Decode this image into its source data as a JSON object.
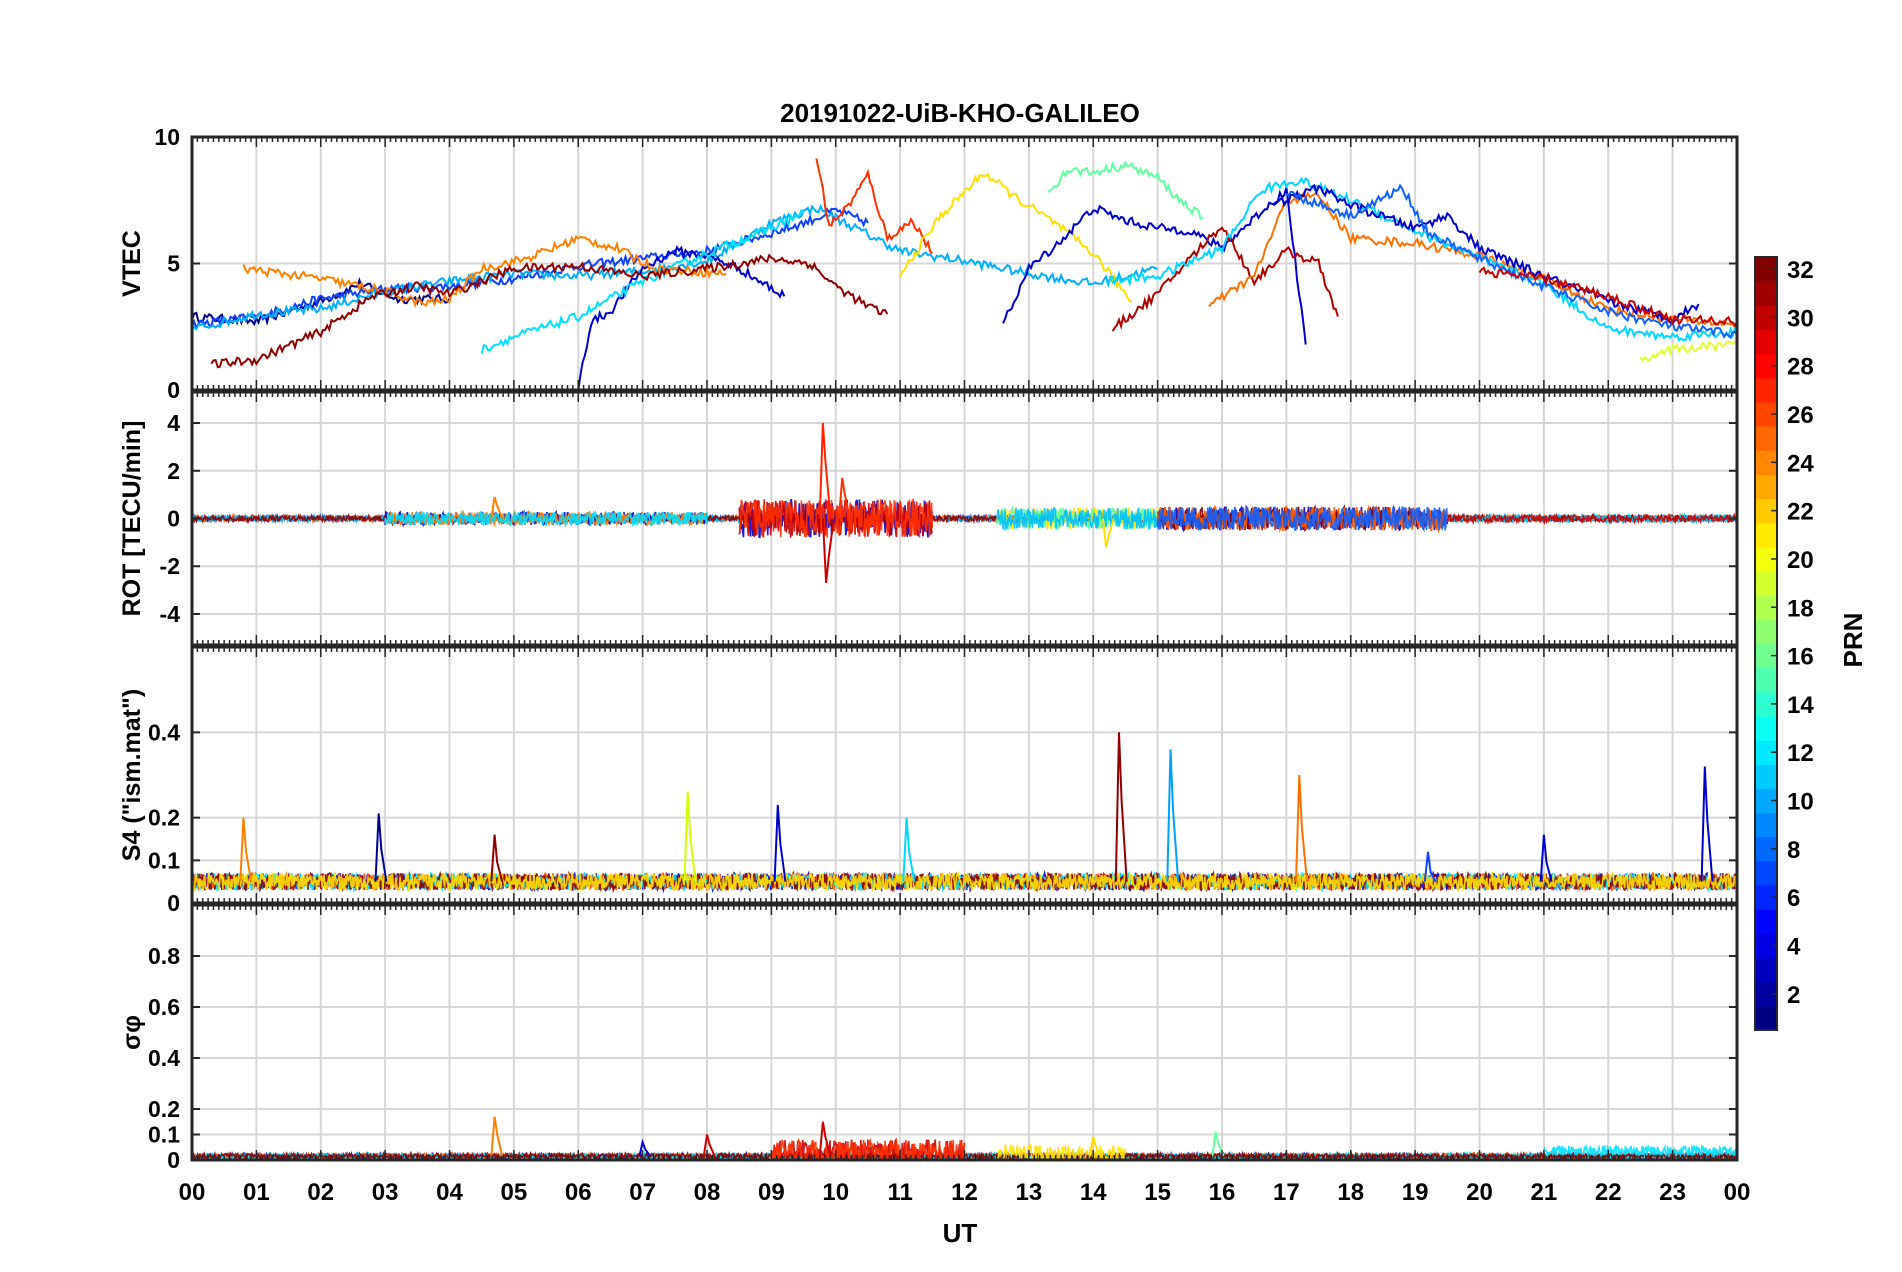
{
  "title": "20191022-UiB-KHO-GALILEO",
  "xlabel": "UT",
  "x_ticks": [
    "00",
    "01",
    "02",
    "03",
    "04",
    "05",
    "06",
    "07",
    "08",
    "09",
    "10",
    "11",
    "12",
    "13",
    "14",
    "15",
    "16",
    "17",
    "18",
    "19",
    "20",
    "21",
    "22",
    "23",
    "00"
  ],
  "colorbar": {
    "label": "PRN",
    "range": [
      1,
      32
    ],
    "ticks": [
      2,
      4,
      6,
      8,
      10,
      12,
      14,
      16,
      18,
      20,
      22,
      24,
      26,
      28,
      30,
      32
    ],
    "colormap": "jet"
  },
  "chart_data": [
    {
      "type": "line",
      "ylabel": "VTEC",
      "ylim": [
        0,
        10
      ],
      "yticks": [
        0,
        5,
        10
      ],
      "grid": true,
      "series": [
        {
          "color": "#00008f",
          "points": [
            [
              0,
              2.9
            ],
            [
              1,
              2.7
            ],
            [
              2,
              3.5
            ],
            [
              2.6,
              4.2
            ],
            [
              3.2,
              3.6
            ],
            [
              4,
              3.6
            ]
          ]
        },
        {
          "color": "#1040ff",
          "points": [
            [
              0,
              2.6
            ],
            [
              1,
              2.9
            ],
            [
              2,
              3.6
            ],
            [
              3,
              4.0
            ],
            [
              4,
              4.1
            ],
            [
              5,
              4.4
            ],
            [
              6,
              4.9
            ],
            [
              7,
              5.2
            ],
            [
              8,
              5.5
            ],
            [
              9,
              6.2
            ],
            [
              9.5,
              6.6
            ],
            [
              10,
              7.1
            ],
            [
              10.5,
              6.6
            ]
          ]
        },
        {
          "color": "#00b0ff",
          "points": [
            [
              0,
              2.4
            ],
            [
              1,
              3.0
            ],
            [
              2,
              3.2
            ],
            [
              3,
              3.9
            ],
            [
              4,
              4.3
            ],
            [
              5,
              4.6
            ],
            [
              6,
              4.5
            ],
            [
              7,
              4.7
            ],
            [
              8,
              5.1
            ],
            [
              9,
              6.6
            ],
            [
              9.7,
              7.2
            ],
            [
              10.3,
              6.4
            ],
            [
              11,
              5.5
            ],
            [
              12,
              5.1
            ],
            [
              13,
              4.6
            ],
            [
              14,
              4.2
            ],
            [
              15,
              4.8
            ]
          ]
        },
        {
          "color": "#0000cd",
          "points": [
            [
              6,
              0.1
            ],
            [
              6.2,
              2.7
            ],
            [
              6.5,
              3.1
            ],
            [
              7,
              4.8
            ],
            [
              7.5,
              5.5
            ],
            [
              8,
              5.3
            ],
            [
              8.5,
              4.8
            ],
            [
              9.2,
              3.7
            ]
          ]
        },
        {
          "color": "#00e0ff",
          "points": [
            [
              4.5,
              1.6
            ],
            [
              5,
              2.1
            ],
            [
              6,
              2.9
            ],
            [
              7,
              4.3
            ],
            [
              8,
              5.4
            ],
            [
              9,
              6.4
            ],
            [
              9.5,
              7.0
            ]
          ]
        },
        {
          "color": "#ff8000",
          "points": [
            [
              0.8,
              4.8
            ],
            [
              2,
              4.4
            ],
            [
              3,
              3.9
            ],
            [
              3.6,
              3.4
            ],
            [
              4,
              3.6
            ],
            [
              4.5,
              4.8
            ],
            [
              5.2,
              5.2
            ],
            [
              6,
              6.0
            ],
            [
              6.6,
              5.6
            ],
            [
              7.2,
              4.8
            ],
            [
              8.3,
              4.6
            ]
          ]
        },
        {
          "color": "#ff3000",
          "points": [
            [
              9.7,
              9.2
            ],
            [
              9.9,
              6.5
            ],
            [
              10.2,
              7.3
            ],
            [
              10.5,
              8.5
            ],
            [
              10.8,
              6.0
            ],
            [
              11.2,
              6.7
            ],
            [
              11.5,
              5.4
            ]
          ]
        },
        {
          "color": "#8f0000",
          "points": [
            [
              0.3,
              1.0
            ],
            [
              1,
              1.2
            ],
            [
              2,
              2.3
            ],
            [
              2.8,
              3.7
            ],
            [
              3.5,
              4.1
            ],
            [
              4,
              3.8
            ],
            [
              5,
              4.8
            ],
            [
              6,
              4.9
            ],
            [
              7,
              4.5
            ],
            [
              8,
              4.8
            ],
            [
              9,
              5.2
            ],
            [
              9.6,
              5.0
            ],
            [
              10,
              4.1
            ],
            [
              10.5,
              3.3
            ],
            [
              10.8,
              3.0
            ]
          ]
        },
        {
          "color": "#ffe000",
          "points": [
            [
              11,
              4.5
            ],
            [
              11.6,
              6.8
            ],
            [
              12.3,
              8.6
            ],
            [
              12.8,
              7.6
            ],
            [
              13.4,
              6.6
            ],
            [
              14,
              5.4
            ],
            [
              14.6,
              3.5
            ]
          ]
        },
        {
          "color": "#60ffa0",
          "points": [
            [
              13.3,
              7.8
            ],
            [
              13.6,
              8.7
            ],
            [
              14,
              8.6
            ],
            [
              14.5,
              8.9
            ],
            [
              15,
              8.4
            ],
            [
              15.3,
              7.6
            ],
            [
              15.7,
              6.8
            ]
          ]
        },
        {
          "color": "#0000cd",
          "points": [
            [
              12.6,
              2.6
            ],
            [
              13,
              4.8
            ],
            [
              13.5,
              5.9
            ],
            [
              14,
              7.2
            ],
            [
              14.5,
              6.7
            ],
            [
              15,
              6.4
            ],
            [
              15.5,
              6.3
            ],
            [
              16,
              5.6
            ],
            [
              16.5,
              6.8
            ],
            [
              17,
              7.9
            ],
            [
              17.3,
              1.8
            ]
          ]
        },
        {
          "color": "#b00000",
          "points": [
            [
              14.3,
              2.4
            ],
            [
              15,
              3.8
            ],
            [
              15.5,
              5.2
            ],
            [
              16,
              6.5
            ],
            [
              16.5,
              4.3
            ],
            [
              17,
              5.5
            ],
            [
              17.5,
              5.0
            ],
            [
              17.8,
              2.9
            ]
          ]
        },
        {
          "color": "#ff7000",
          "points": [
            [
              15.8,
              3.3
            ],
            [
              16.5,
              4.5
            ],
            [
              17,
              7.5
            ],
            [
              17.5,
              7.7
            ],
            [
              18,
              6.0
            ],
            [
              19,
              5.8
            ],
            [
              20,
              5.3
            ],
            [
              21,
              4.4
            ],
            [
              22,
              3.2
            ],
            [
              23,
              2.8
            ],
            [
              24,
              2.6
            ]
          ]
        },
        {
          "color": "#00d8ff",
          "points": [
            [
              14.2,
              4.3
            ],
            [
              15,
              4.5
            ],
            [
              16,
              5.6
            ],
            [
              16.6,
              7.9
            ],
            [
              17.2,
              8.3
            ],
            [
              18,
              7.5
            ],
            [
              19,
              6.3
            ],
            [
              20,
              5.2
            ],
            [
              21,
              4.2
            ],
            [
              22,
              2.4
            ],
            [
              23,
              2.1
            ],
            [
              24,
              2.3
            ]
          ]
        },
        {
          "color": "#0000cd",
          "points": [
            [
              16.8,
              7.3
            ],
            [
              17.5,
              8.0
            ],
            [
              18,
              7.3
            ],
            [
              19,
              6.4
            ],
            [
              19.5,
              6.9
            ],
            [
              20,
              5.6
            ],
            [
              21,
              4.5
            ],
            [
              22,
              3.5
            ],
            [
              23,
              2.8
            ],
            [
              23.4,
              3.4
            ]
          ]
        },
        {
          "color": "#1060ff",
          "points": [
            [
              17,
              7.8
            ],
            [
              18,
              6.9
            ],
            [
              18.8,
              8.0
            ],
            [
              19.2,
              6.2
            ],
            [
              20,
              5.2
            ],
            [
              21,
              4.1
            ],
            [
              22,
              3.1
            ],
            [
              23,
              2.5
            ],
            [
              24,
              2.2
            ]
          ]
        },
        {
          "color": "#cc0000",
          "points": [
            [
              20,
              4.7
            ],
            [
              21,
              4.4
            ],
            [
              22,
              3.7
            ],
            [
              23,
              2.8
            ],
            [
              24,
              2.7
            ]
          ]
        },
        {
          "color": "#e0ff30",
          "points": [
            [
              22.5,
              1.2
            ],
            [
              23,
              1.6
            ],
            [
              24,
              1.8
            ]
          ]
        }
      ]
    },
    {
      "type": "line",
      "ylabel": "ROT [TECU/min]",
      "ylim": [
        -5.3,
        5.3
      ],
      "yticks": [
        -4,
        -2,
        0,
        2,
        4
      ],
      "grid": true,
      "noise_bands": [
        {
          "x": [
            0,
            24
          ],
          "amp": 0.12,
          "colors": [
            "#1040ff",
            "#ff6000",
            "#00c0ff",
            "#8f0000"
          ]
        },
        {
          "x": [
            3,
            8
          ],
          "amp": 0.28,
          "colors": [
            "#0000cd",
            "#ff8000",
            "#00e0ff"
          ]
        },
        {
          "x": [
            8.5,
            11.5
          ],
          "amp": 0.8,
          "colors": [
            "#0000cd",
            "#cc0000",
            "#ff3000"
          ]
        },
        {
          "x": [
            12.5,
            15
          ],
          "amp": 0.45,
          "colors": [
            "#ffe000",
            "#60ffa0",
            "#00c0ff"
          ]
        },
        {
          "x": [
            15,
            19.5
          ],
          "amp": 0.5,
          "colors": [
            "#0000cd",
            "#8f0000",
            "#ff6000",
            "#1060ff"
          ]
        },
        {
          "x": [
            19.5,
            24
          ],
          "amp": 0.15,
          "colors": [
            "#00d8ff",
            "#cc0000"
          ]
        }
      ],
      "spikes": [
        [
          9.8,
          4.0,
          "#ff2000"
        ],
        [
          9.85,
          -2.7,
          "#cc0000"
        ],
        [
          10.1,
          1.7,
          "#ff3000"
        ],
        [
          4.7,
          0.9,
          "#ff8000"
        ],
        [
          14.2,
          -1.2,
          "#ffe000"
        ]
      ]
    },
    {
      "type": "line",
      "ylabel": "S4 (\"ism.mat\")",
      "ylim": [
        0,
        0.6
      ],
      "yticks": [
        0,
        0.1,
        0.2,
        0.4
      ],
      "grid": true,
      "noise_bands": [
        {
          "x": [
            0,
            24
          ],
          "base": 0.05,
          "amp": 0.02,
          "colors": [
            "#0000cd",
            "#ff6000",
            "#00e0ff",
            "#8f0000",
            "#ffe000"
          ]
        }
      ],
      "spikes": [
        [
          0.8,
          0.2,
          "#ff8000"
        ],
        [
          2.9,
          0.21,
          "#00008f"
        ],
        [
          4.7,
          0.16,
          "#8f0000"
        ],
        [
          7.7,
          0.26,
          "#d0ff00"
        ],
        [
          9.1,
          0.23,
          "#0000cd"
        ],
        [
          11.1,
          0.2,
          "#00d8ff"
        ],
        [
          14.4,
          0.4,
          "#8f0000"
        ],
        [
          15.2,
          0.36,
          "#00a0ff"
        ],
        [
          17.2,
          0.3,
          "#ff7000"
        ],
        [
          19.2,
          0.12,
          "#1040ff"
        ],
        [
          21.0,
          0.16,
          "#0000cd"
        ],
        [
          23.5,
          0.32,
          "#0000cd"
        ]
      ]
    },
    {
      "type": "line",
      "ylabel": "σφ",
      "ylim": [
        0,
        1.0
      ],
      "yticks": [
        0,
        0.1,
        0.2,
        0.4,
        0.6,
        0.8
      ],
      "grid": true,
      "noise_bands": [
        {
          "x": [
            0,
            24
          ],
          "base": 0.015,
          "amp": 0.01,
          "colors": [
            "#0000cd",
            "#ff6000",
            "#00e0ff",
            "#8f0000"
          ]
        },
        {
          "x": [
            9,
            12
          ],
          "base": 0.03,
          "amp": 0.05,
          "colors": [
            "#cc0000",
            "#ff3000"
          ]
        },
        {
          "x": [
            12.5,
            14.5
          ],
          "base": 0.02,
          "amp": 0.04,
          "colors": [
            "#ffe000"
          ]
        },
        {
          "x": [
            21,
            24
          ],
          "base": 0.035,
          "amp": 0.02,
          "colors": [
            "#00e0ff"
          ]
        }
      ],
      "spikes": [
        [
          4.7,
          0.17,
          "#ff8000"
        ],
        [
          9.8,
          0.15,
          "#cc0000"
        ],
        [
          7.0,
          0.07,
          "#0000cd"
        ],
        [
          8.0,
          0.1,
          "#cc0000"
        ],
        [
          14.0,
          0.09,
          "#ffe000"
        ],
        [
          15.9,
          0.11,
          "#60ffa0"
        ]
      ]
    }
  ]
}
